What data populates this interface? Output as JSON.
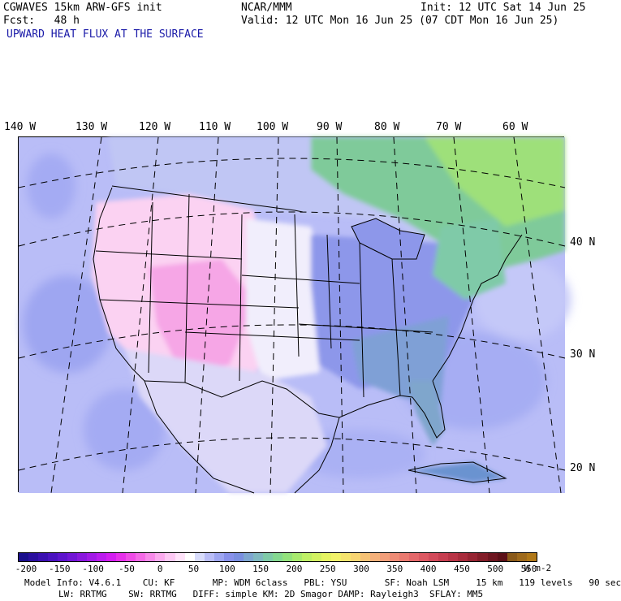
{
  "header": {
    "model": "CGWAVES 15km ARW-GFS init",
    "fcst": "Fcst:   48 h",
    "field": "UPWARD HEAT FLUX AT THE SURFACE",
    "center": "NCAR/MMM",
    "init": "Init: 12 UTC Sat 14 Jun 25",
    "valid": "Valid: 12 UTC Mon 16 Jun 25 (07 CDT Mon 16 Jun 25)"
  },
  "lon_labels": [
    "140 W",
    "130 W",
    "120 W",
    "110 W",
    "100 W",
    "90 W",
    "80 W",
    "70 W",
    "60 W"
  ],
  "lat_labels": [
    "40 N",
    "30 N",
    "20 N"
  ],
  "colorbar": {
    "labels": [
      "-200",
      "-150",
      "-100",
      "-50",
      "0",
      "50",
      "100",
      "150",
      "200",
      "250",
      "300",
      "350",
      "400",
      "450",
      "500",
      "550"
    ],
    "units": "W m-2",
    "colors": [
      "#1a0f8c",
      "#2a0f9e",
      "#3a10b0",
      "#4a12bf",
      "#5d14cc",
      "#7216d6",
      "#8a18de",
      "#a21ae6",
      "#bb1cee",
      "#d31ef0",
      "#e630ea",
      "#ef4ce6",
      "#f46ae6",
      "#f78ae9",
      "#fbaaee",
      "#fdc8f4",
      "#ffe3fa",
      "#ffffff",
      "#d8dcfb",
      "#b9bdf7",
      "#9ea6f1",
      "#8891ea",
      "#7a8fe0",
      "#7ea6d0",
      "#80b8c0",
      "#7fcaa8",
      "#84d890",
      "#93e27c",
      "#a8ea6e",
      "#bff066",
      "#d3f262",
      "#e6f462",
      "#f2f26a",
      "#f6e46e",
      "#f7d472",
      "#f6c276",
      "#f4b07a",
      "#f19e7a",
      "#ee8c76",
      "#ea7a70",
      "#e4686a",
      "#dc5862",
      "#d24a5a",
      "#c63e50",
      "#b83446",
      "#a82c3c",
      "#962432",
      "#821d28",
      "#6e1620",
      "#5c1018",
      "#8a5a1a",
      "#9e6a1c",
      "#b07818"
    ]
  },
  "model_info": {
    "line1": "Model Info: V4.6.1    CU: KF       MP: WDM 6class   PBL: YSU       SF: Noah LSM     15 km   119 levels   90 sec",
    "line2": "LW: RRTMG    SW: RRTMG   DIFF: simple KM: 2D Smagor DAMP: Rayleigh3  SFLAY: MM5"
  }
}
